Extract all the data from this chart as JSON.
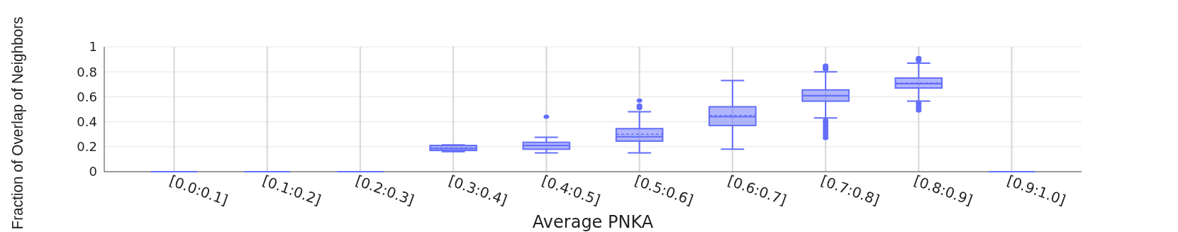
{
  "chart_data": {
    "type": "box",
    "xlabel": "Average PNKA",
    "ylabel": "Fraction of Overlap of Neighbors",
    "categories": [
      "[0.0:0.1]",
      "[0.1:0.2]",
      "[0.2:0.3]",
      "[0.3:0.4]",
      "[0.4:0.5]",
      "[0.5:0.6]",
      "[0.6:0.7]",
      "[0.7:0.8]",
      "[0.8:0.9]",
      "[0.9:1.0]"
    ],
    "series": [
      {
        "color": "#636efa",
        "boxes": [
          {
            "low": 0,
            "q1": 0,
            "median": 0,
            "q3": 0,
            "high": 0
          },
          {
            "low": 0,
            "q1": 0,
            "median": 0,
            "q3": 0,
            "high": 0
          },
          {
            "low": 0,
            "q1": 0,
            "median": 0,
            "q3": 0,
            "high": 0
          },
          {
            "low": 0.16,
            "q1": 0.17,
            "median": 0.185,
            "q3": 0.21,
            "high": 0.215,
            "mean": 0.19
          },
          {
            "low": 0.15,
            "q1": 0.18,
            "median": 0.21,
            "q3": 0.235,
            "high": 0.275,
            "mean": 0.21,
            "outliers": [
              0.44
            ]
          },
          {
            "low": 0.15,
            "q1": 0.245,
            "median": 0.28,
            "q3": 0.345,
            "high": 0.48,
            "mean": 0.3,
            "outliers": [
              0.51,
              0.52,
              0.53,
              0.57
            ]
          },
          {
            "low": 0.18,
            "q1": 0.37,
            "median": 0.44,
            "q3": 0.52,
            "high": 0.73,
            "mean": 0.45
          },
          {
            "low": 0.43,
            "q1": 0.565,
            "median": 0.61,
            "q3": 0.655,
            "high": 0.8,
            "mean": 0.61,
            "outliers": [
              0.27,
              0.29,
              0.31,
              0.33,
              0.35,
              0.37,
              0.39,
              0.41,
              0.82,
              0.83,
              0.84,
              0.85
            ]
          },
          {
            "low": 0.565,
            "q1": 0.67,
            "median": 0.705,
            "q3": 0.75,
            "high": 0.87,
            "mean": 0.71,
            "outliers": [
              0.49,
              0.51,
              0.53,
              0.55,
              0.89,
              0.9,
              0.91
            ]
          },
          {
            "low": 0,
            "q1": 0,
            "median": 0,
            "q3": 0,
            "high": 0
          }
        ]
      }
    ],
    "ylim": [
      0,
      1
    ],
    "yticks": [
      0,
      0.2,
      0.4,
      0.6,
      0.8,
      1
    ],
    "grid": true
  }
}
